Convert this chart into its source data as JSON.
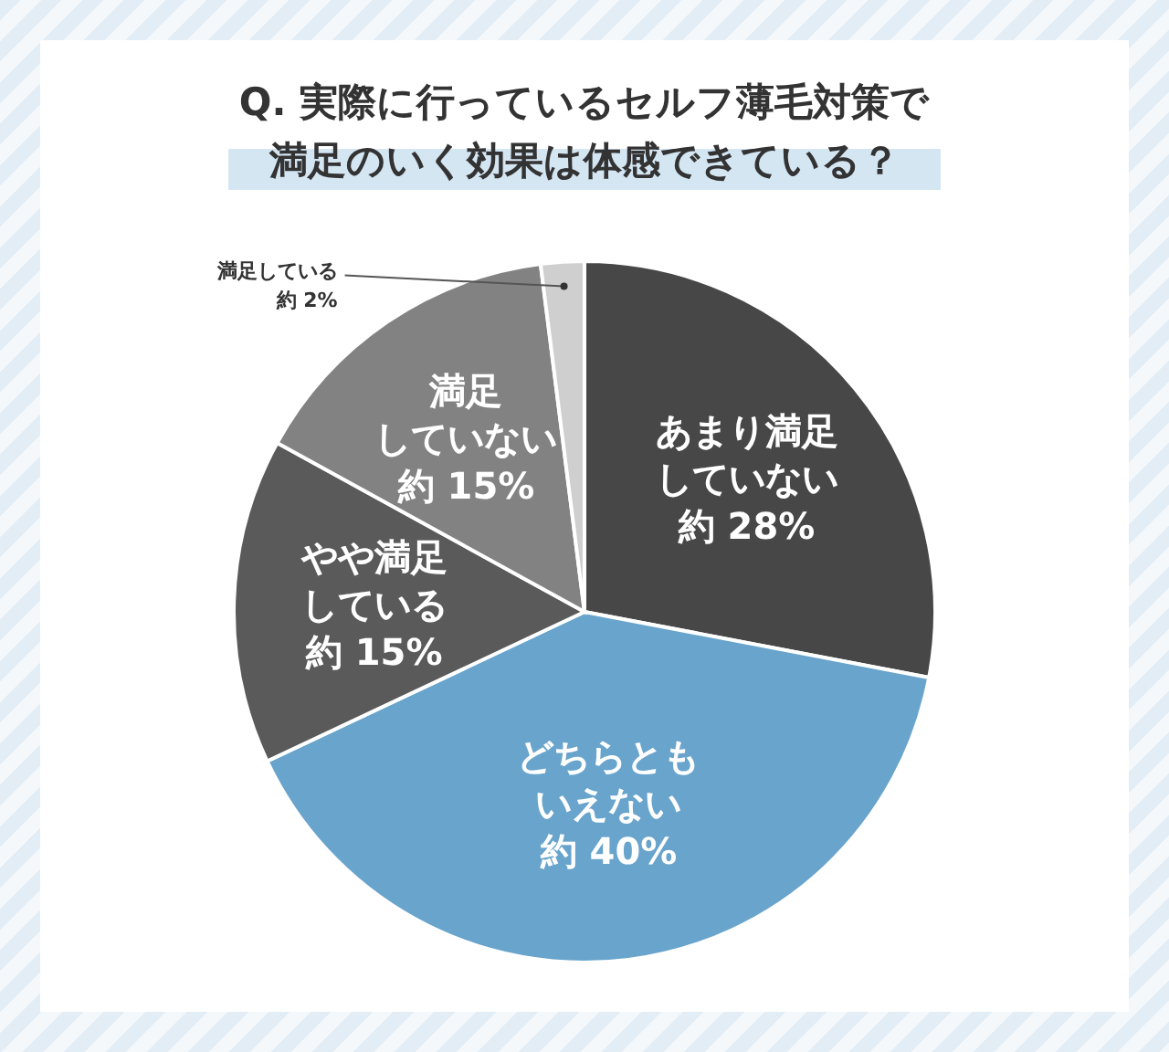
{
  "chart_data": {
    "type": "pie",
    "title": "Q. 実際に行っているセルフ薄毛対策で満足のいく効果は体感できている？",
    "categories": [
      "あまり満足していない",
      "どちらともいえない",
      "やや満足している",
      "満足していない",
      "満足している"
    ],
    "values": [
      28,
      40,
      15,
      15,
      2
    ],
    "colors": [
      "#474747",
      "#68a4cc",
      "#5a5a5a",
      "#828282",
      "#cfcfcf"
    ],
    "value_labels": [
      "約 28%",
      "約 40%",
      "約 15%",
      "約 15%",
      "約 2%"
    ]
  }
}
